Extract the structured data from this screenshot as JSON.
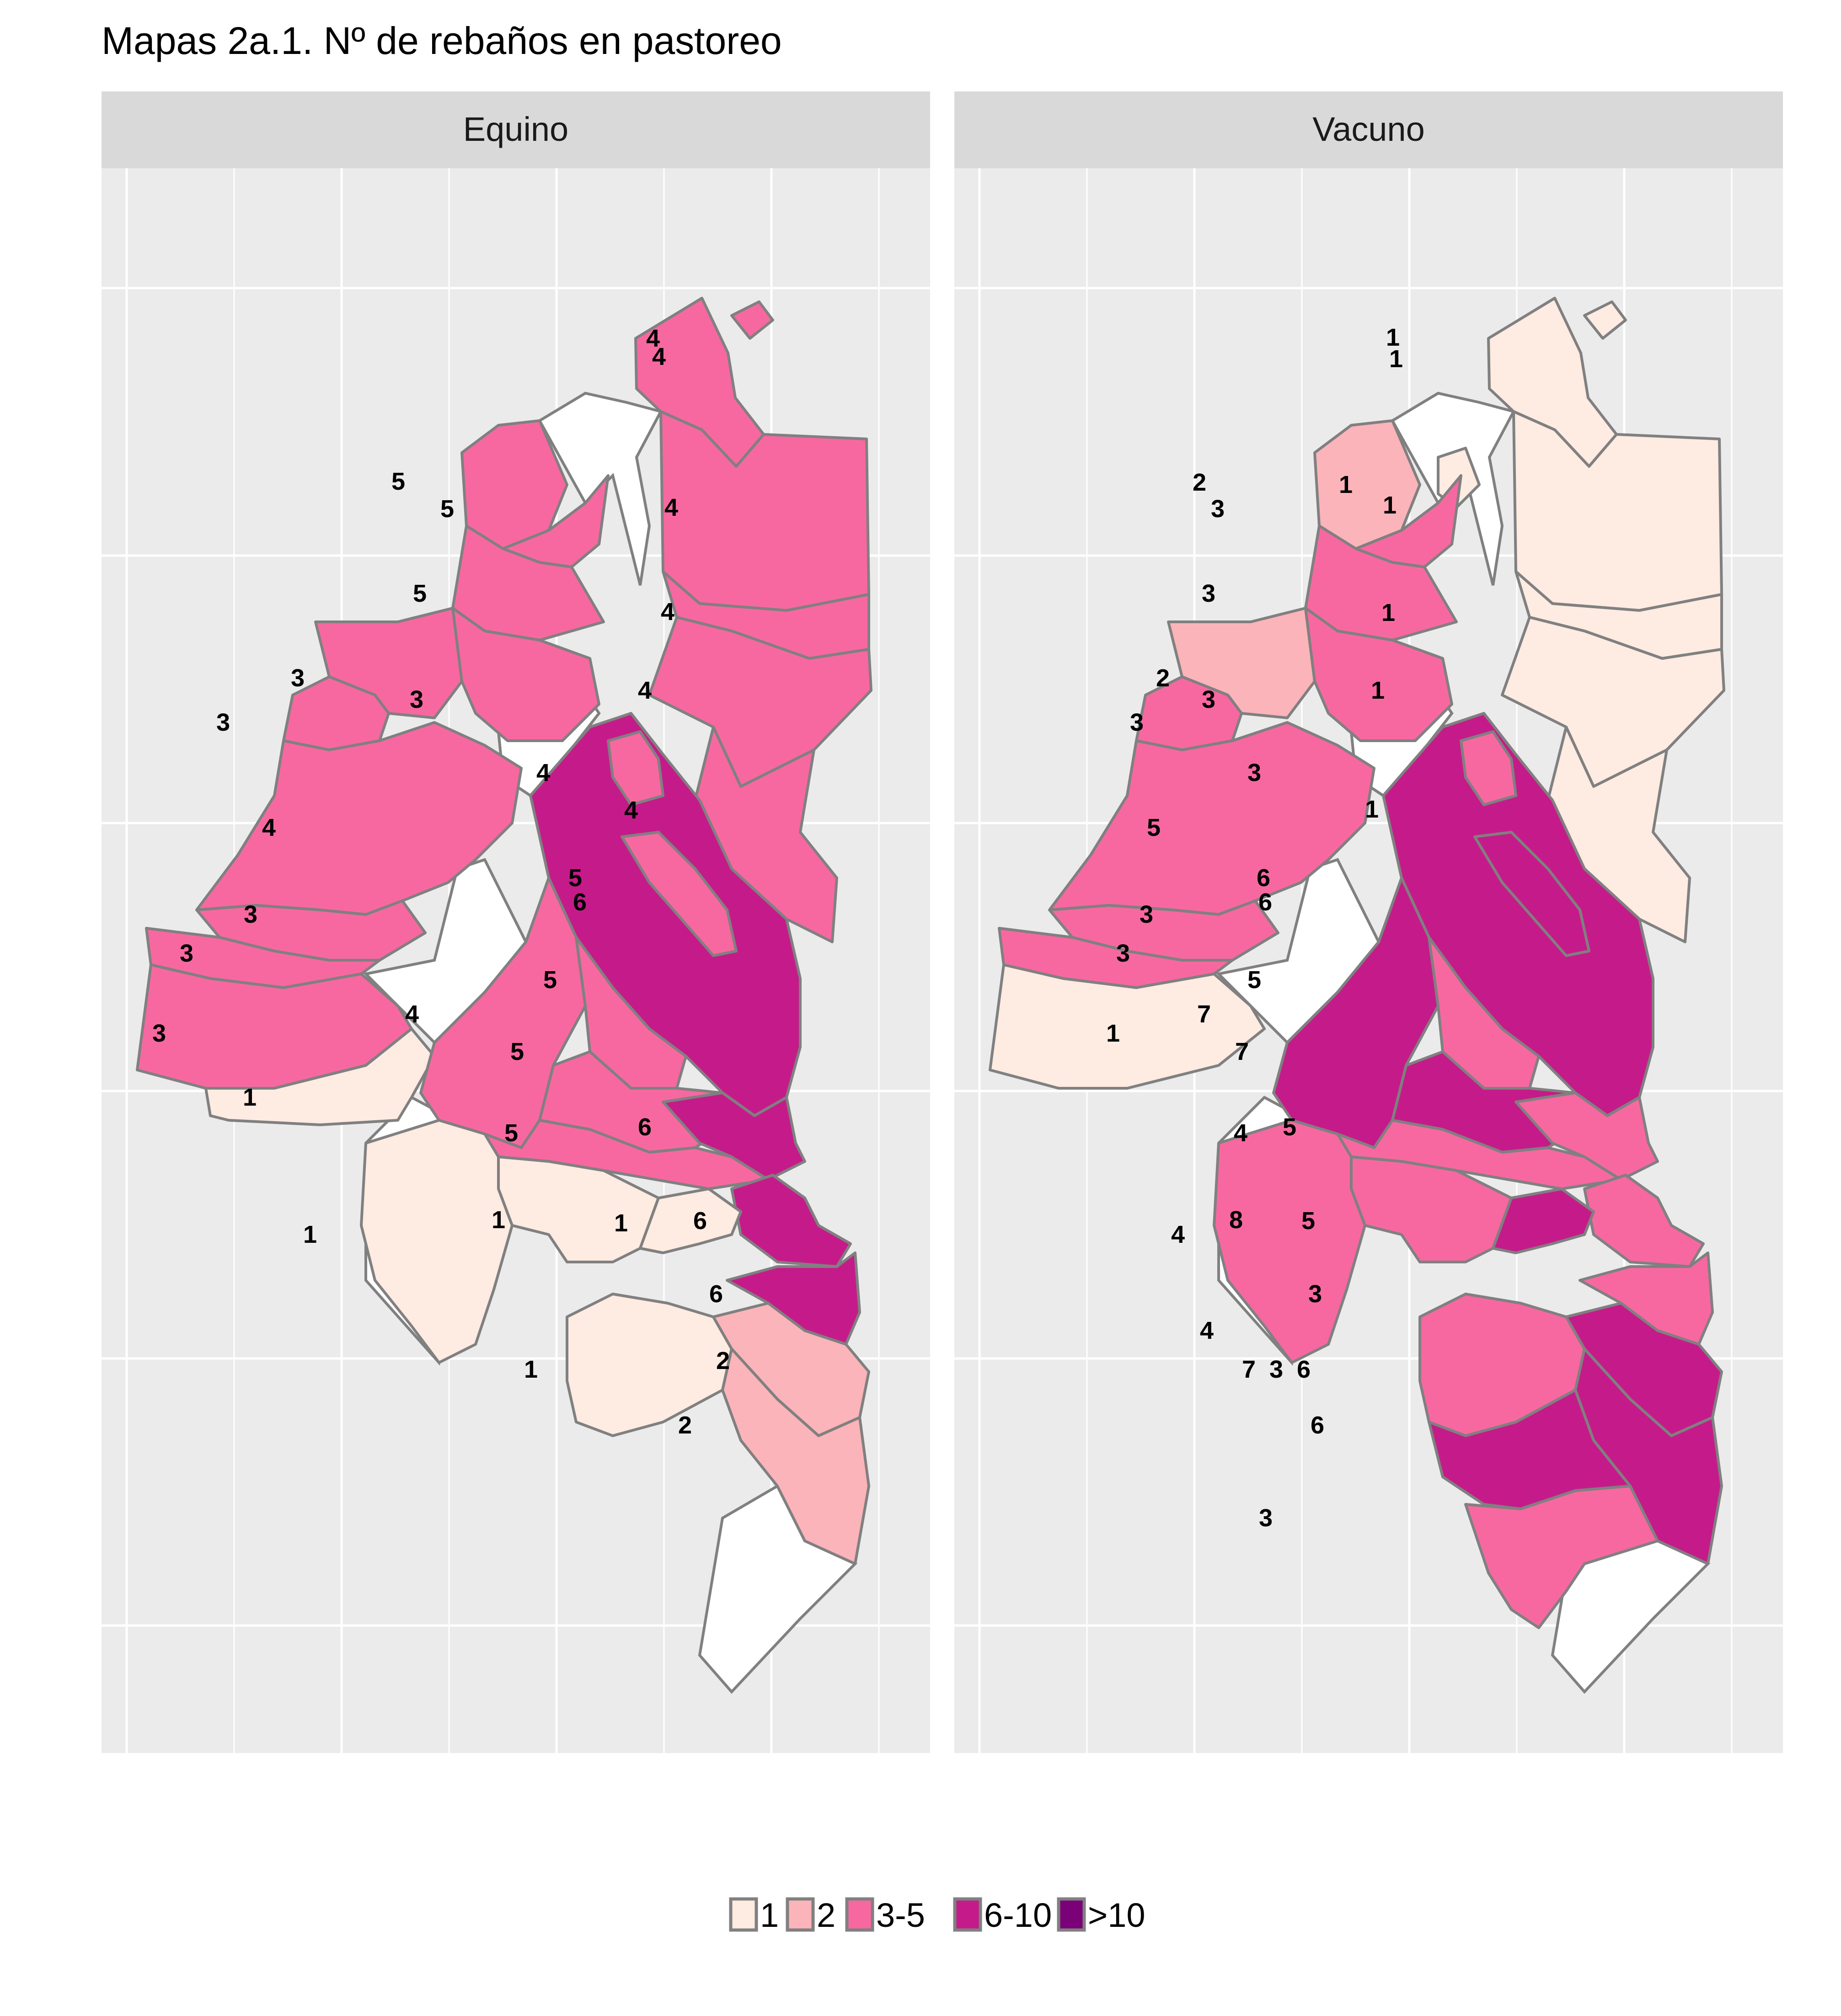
{
  "title": "Mapas 2a.1. Nº de rebaños en pastoreo",
  "legend": {
    "entries": [
      {
        "label": "1",
        "color": "#feebe2"
      },
      {
        "label": "2",
        "color": "#fbb4b9"
      },
      {
        "label": "3-5",
        "color": "#f768a1"
      },
      {
        "label": "6-10",
        "color": "#c51b8a"
      },
      {
        "label": ">10",
        "color": "#7a0177"
      }
    ]
  },
  "colors": {
    "panel_background": "#ebebeb",
    "strip_background": "#d9d9d9",
    "grid": "#ffffff",
    "region_border": "#808080",
    "no_data": "#ffffff"
  },
  "panels": [
    {
      "title": "Equino",
      "regions": [
        {
          "id": "north_top",
          "label": "4",
          "category": "3-5"
        },
        {
          "id": "north_top_inner",
          "label": "4",
          "category": "3-5"
        },
        {
          "id": "east_1",
          "label": "4",
          "category": "3-5"
        },
        {
          "id": "east_2",
          "label": "4",
          "category": "3-5"
        },
        {
          "id": "east_3",
          "label": "4",
          "category": "3-5"
        },
        {
          "id": "east_4",
          "label": "4",
          "category": "3-5"
        },
        {
          "id": "nw_1",
          "label": "5",
          "category": "3-5"
        },
        {
          "id": "nw_2",
          "label": "5",
          "category": "3-5"
        },
        {
          "id": "nw_3",
          "label": "5",
          "category": "3-5"
        },
        {
          "id": "w_1",
          "label": "3",
          "category": "3-5"
        },
        {
          "id": "w_2",
          "label": "3",
          "category": "3-5"
        },
        {
          "id": "w_3",
          "label": "3",
          "category": "3-5"
        },
        {
          "id": "w_big",
          "label": "4",
          "category": "3-5"
        },
        {
          "id": "w_4",
          "label": "3",
          "category": "3-5"
        },
        {
          "id": "w_5",
          "label": "3",
          "category": "3-5"
        },
        {
          "id": "w_6",
          "label": "3",
          "category": "3-5"
        },
        {
          "id": "w_south",
          "label": "1",
          "category": "1"
        },
        {
          "id": "center_dark",
          "label": "6",
          "category": "6-10"
        },
        {
          "id": "center_inner",
          "label": "5",
          "category": "3-5"
        },
        {
          "id": "center_inner_b",
          "label": "4",
          "category": "3-5"
        },
        {
          "id": "c_1",
          "label": "4",
          "category": "3-5"
        },
        {
          "id": "c_2",
          "label": "5",
          "category": "3-5"
        },
        {
          "id": "c_3",
          "label": "5",
          "category": "3-5"
        },
        {
          "id": "c_4",
          "label": "5",
          "category": "3-5"
        },
        {
          "id": "se_1",
          "label": "6",
          "category": "6-10"
        },
        {
          "id": "se_2",
          "label": "6",
          "category": "6-10"
        },
        {
          "id": "se_3",
          "label": "6",
          "category": "6-10"
        },
        {
          "id": "s_1",
          "label": "1",
          "category": "1"
        },
        {
          "id": "s_2",
          "label": "1",
          "category": "1"
        },
        {
          "id": "s_3",
          "label": "1",
          "category": "1"
        },
        {
          "id": "s_4",
          "label": "1",
          "category": "1"
        },
        {
          "id": "s_5",
          "label": "2",
          "category": "2"
        },
        {
          "id": "s_6",
          "label": "2",
          "category": "2"
        }
      ]
    },
    {
      "title": "Vacuno",
      "regions": [
        {
          "id": "north_top",
          "label": "1",
          "category": "1"
        },
        {
          "id": "north_top_inner",
          "label": "1",
          "category": "1"
        },
        {
          "id": "east_1",
          "label": "1",
          "category": "1"
        },
        {
          "id": "east_1b",
          "label": "1",
          "category": "1"
        },
        {
          "id": "east_2",
          "label": "1",
          "category": "1"
        },
        {
          "id": "east_3",
          "label": "1",
          "category": "1"
        },
        {
          "id": "east_4",
          "label": "1",
          "category": "1"
        },
        {
          "id": "nw_1",
          "label": "2",
          "category": "2"
        },
        {
          "id": "nw_2",
          "label": "3",
          "category": "3-5"
        },
        {
          "id": "nw_3",
          "label": "3",
          "category": "3-5"
        },
        {
          "id": "w_1",
          "label": "2",
          "category": "2"
        },
        {
          "id": "w_2",
          "label": "3",
          "category": "3-5"
        },
        {
          "id": "w_3",
          "label": "3",
          "category": "3-5"
        },
        {
          "id": "w_big",
          "label": "5",
          "category": "3-5"
        },
        {
          "id": "w_4",
          "label": "3",
          "category": "3-5"
        },
        {
          "id": "w_5",
          "label": "3",
          "category": "3-5"
        },
        {
          "id": "w_6",
          "label": "1",
          "category": "1"
        },
        {
          "id": "center_dark",
          "label": "6",
          "category": "6-10"
        },
        {
          "id": "center_inner",
          "label": "6",
          "category": "6-10"
        },
        {
          "id": "center_inner_b",
          "label": "3",
          "category": "3-5"
        },
        {
          "id": "c_1",
          "label": "7",
          "category": "6-10"
        },
        {
          "id": "c_2",
          "label": "5",
          "category": "3-5"
        },
        {
          "id": "c_3",
          "label": "7",
          "category": "6-10"
        },
        {
          "id": "c_4",
          "label": "4",
          "category": "3-5"
        },
        {
          "id": "se_1",
          "label": "5",
          "category": "3-5"
        },
        {
          "id": "se_2",
          "label": "5",
          "category": "3-5"
        },
        {
          "id": "se_3",
          "label": "3",
          "category": "3-5"
        },
        {
          "id": "s_1",
          "label": "4",
          "category": "3-5"
        },
        {
          "id": "s_2",
          "label": "8",
          "category": "6-10"
        },
        {
          "id": "s_3",
          "label": "3",
          "category": "3-5"
        },
        {
          "id": "s_4",
          "label": "4",
          "category": "3-5"
        },
        {
          "id": "s_5",
          "label": "7",
          "category": "6-10"
        },
        {
          "id": "s_6",
          "label": "6",
          "category": "6-10"
        },
        {
          "id": "s_7",
          "label": "6",
          "category": "6-10"
        },
        {
          "id": "s_8",
          "label": "3",
          "category": "3-5"
        }
      ]
    }
  ]
}
